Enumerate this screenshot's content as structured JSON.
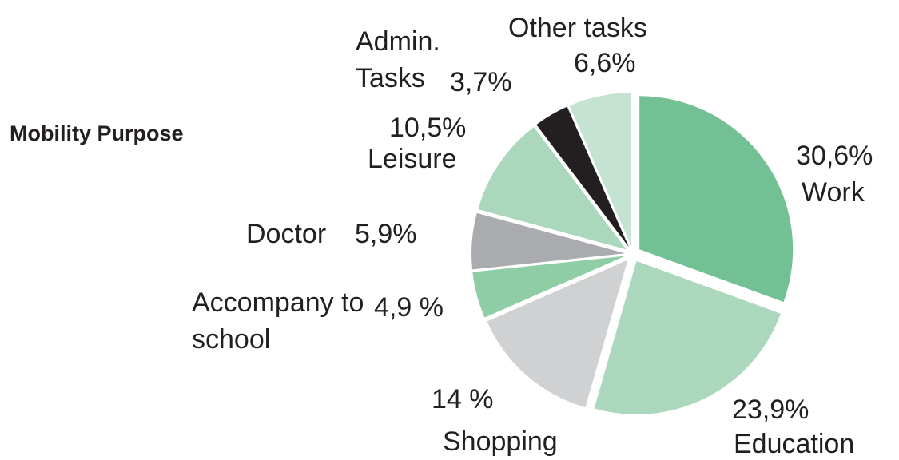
{
  "chart_data": {
    "type": "pie",
    "title": "Mobility Purpose",
    "categories": [
      "Work",
      "Education",
      "Shopping",
      "Accompany to school",
      "Doctor",
      "Leisure",
      "Admin. Tasks",
      "Other tasks"
    ],
    "values": [
      30.6,
      23.9,
      14,
      4.9,
      5.9,
      10.5,
      3.7,
      6.6
    ],
    "value_labels": [
      "30,6%",
      "23,9%",
      "14 %",
      "4,9 %",
      "5,9%",
      "10,5%",
      "3,7%",
      "6,6%"
    ],
    "colors": [
      "#74c095",
      "#abd7bc",
      "#d0d1d3",
      "#8fcda5",
      "#aaabaf",
      "#abd7bc",
      "#231f20",
      "#c5e3d2"
    ]
  }
}
